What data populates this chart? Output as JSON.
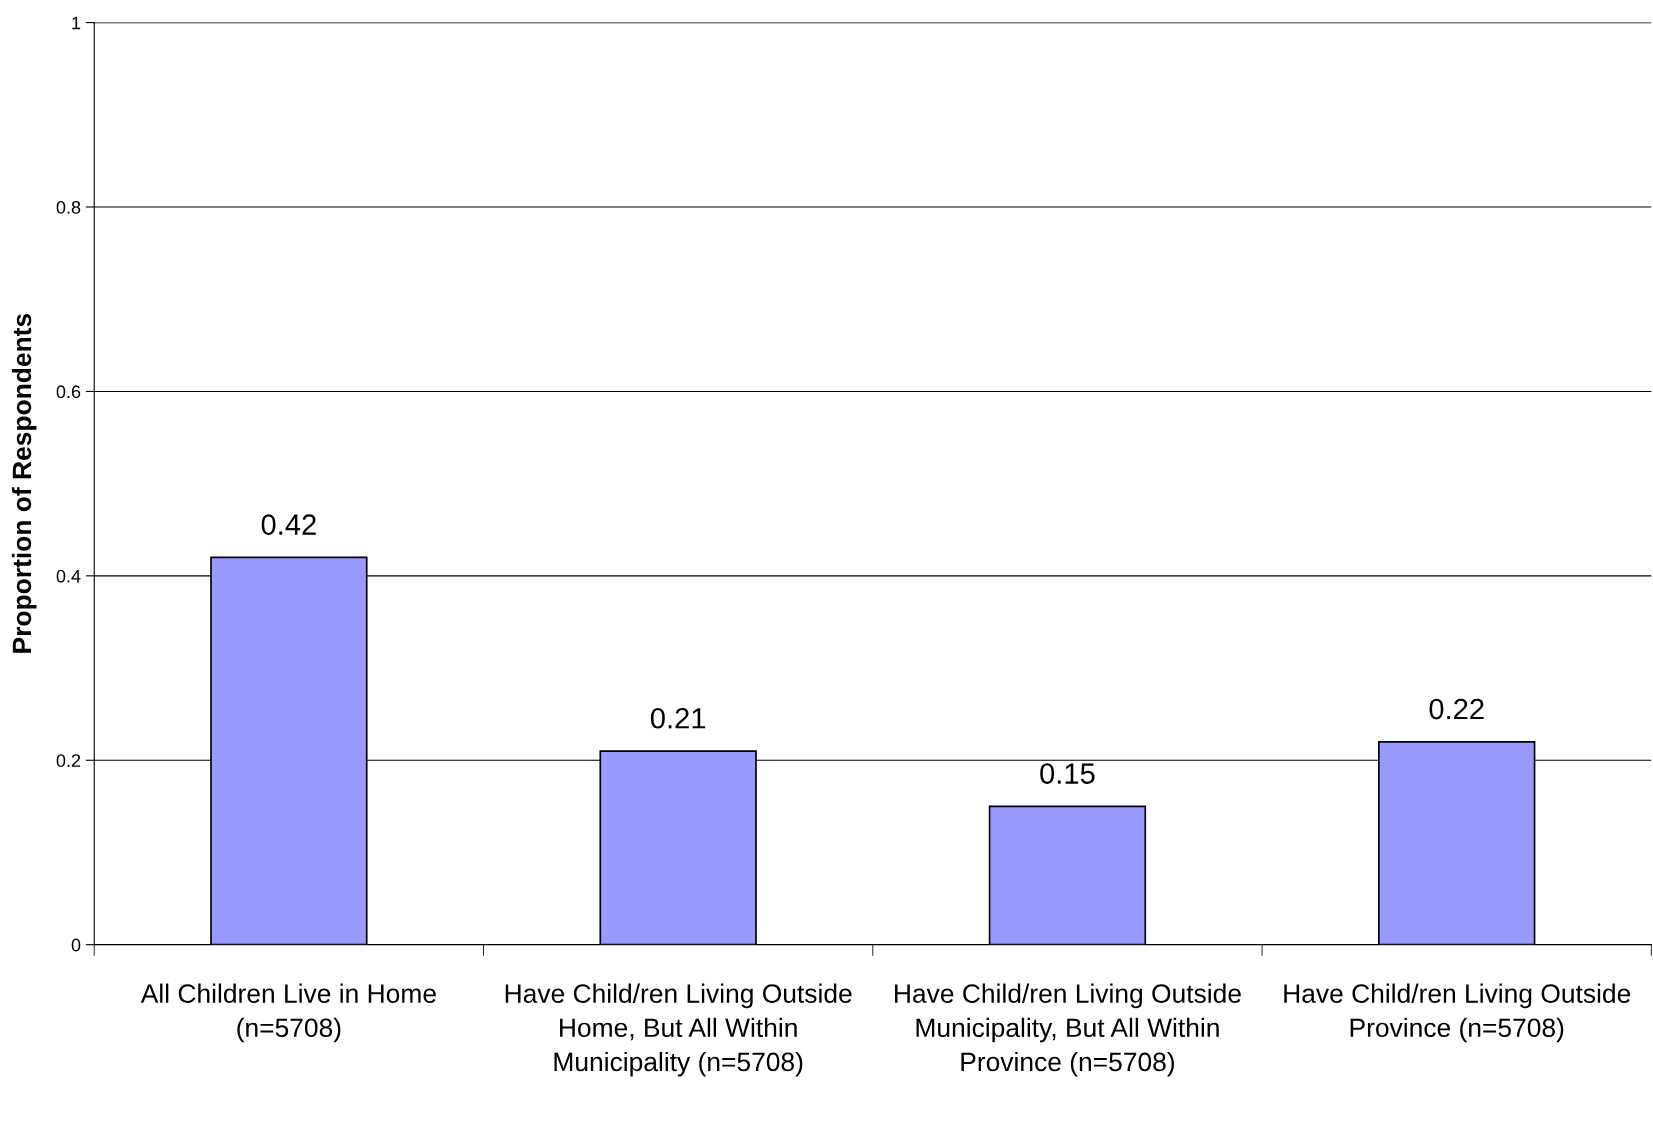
{
  "chart_data": {
    "type": "bar",
    "ylabel": "Proportion of Respondents",
    "categories": [
      "All Children Live in Home\n(n=5708)",
      "Have Child/ren Living Outside\nHome, But All Within\nMunicipality (n=5708)",
      "Have Child/ren Living Outside\nMunicipality, But All Within\nProvince (n=5708)",
      "Have Child/ren Living Outside\nProvince (n=5708)"
    ],
    "values": [
      0.42,
      0.21,
      0.15,
      0.22
    ],
    "color": "#9999ff",
    "ylim": [
      0,
      1
    ],
    "yticks": [
      0,
      0.2,
      0.4,
      0.6,
      0.8,
      1
    ],
    "grid": "y",
    "data_labels": true
  }
}
